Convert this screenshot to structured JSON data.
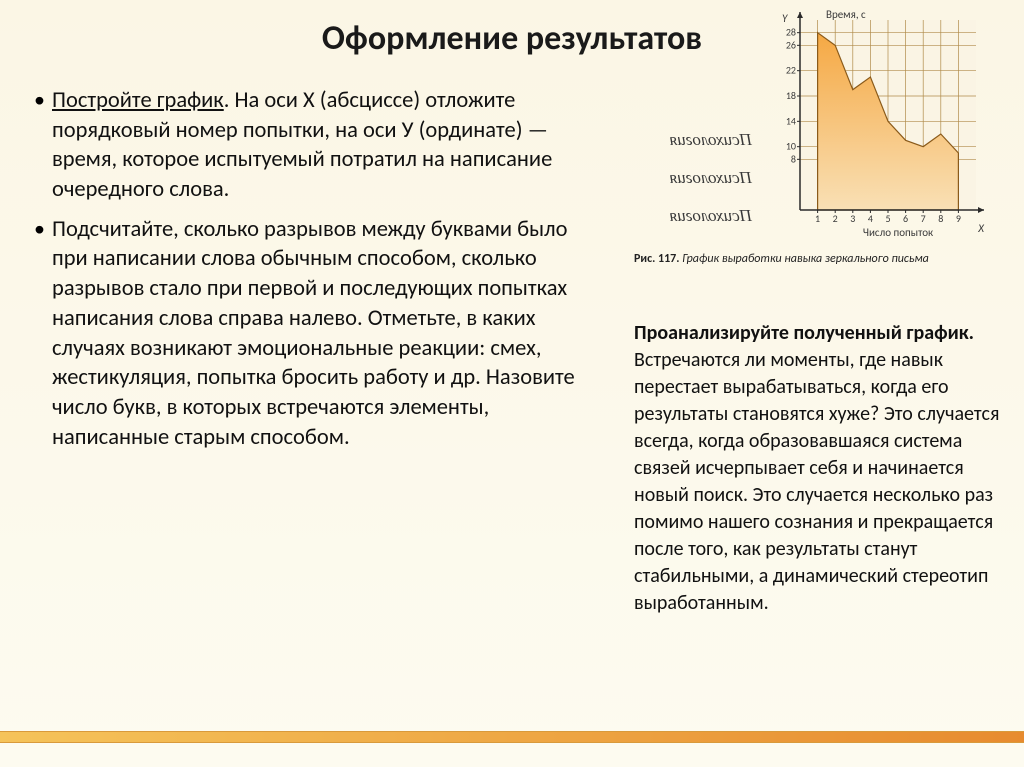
{
  "title": "Оформление результатов",
  "bullets": [
    {
      "lead": "Постройте график",
      "rest": ". На оси Х (абсциссе) отложите порядковый номер попытки, на оси У (ординате) — время, которое испытуемый потратил на написание очередного слова."
    },
    {
      "lead": "",
      "rest": "Подсчитайте, сколько разрывов между буквами было при написании слова обычным способом, сколько разрывов стало при первой и последующих попытках написания слова справа налево. Отметьте, в каких случаях возникают эмоциональные реакции: смех, жестикуляция, попытка бросить работу и др. Назовите число букв, в которых встречаются элементы, написанные старым способом."
    }
  ],
  "right_paragraph": {
    "lead": "Проанализируйте полученный график.",
    "rest": " Встречаются ли моменты, где навык перестает вырабатываться, когда его результаты становятся хуже? Это случается всегда, когда образовавшаяся система связей исчерпывает себя и начинается новый поиск. Это случается несколько раз помимо нашего сознания и прекращается после того, как результаты станут стабильными, а динамический стереотип выработанным."
  },
  "mirror_word": "Психология",
  "figure_caption": {
    "num": "Рис. 117.",
    "text": "График выработки навыка зеркального письма"
  },
  "chart": {
    "type": "area",
    "y_label_top": "Время, с",
    "y_axis_letter": "Y",
    "x_axis_letter": "X",
    "x_label": "Число попыток",
    "y_ticks": [
      8,
      10,
      14,
      18,
      22,
      26,
      28
    ],
    "x_ticks": [
      1,
      2,
      3,
      4,
      5,
      6,
      7,
      8,
      9
    ],
    "values": [
      28,
      26,
      19,
      21,
      14,
      11,
      10,
      12,
      9
    ],
    "ylim": [
      0,
      30
    ],
    "xlim": [
      0,
      10
    ],
    "colors": {
      "grid": "#b08a4a",
      "axis": "#2a2a2a",
      "fill_top": "#f5a843",
      "fill_bottom": "#f9e0b5",
      "line": "#8a5a1a",
      "bg": "#faf4e4",
      "tick_text": "#3a3a3a"
    },
    "font_size_ticks": 10,
    "font_size_labels": 11,
    "plot": {
      "w": 176,
      "h": 190,
      "ox": 36,
      "oy": 14
    }
  }
}
